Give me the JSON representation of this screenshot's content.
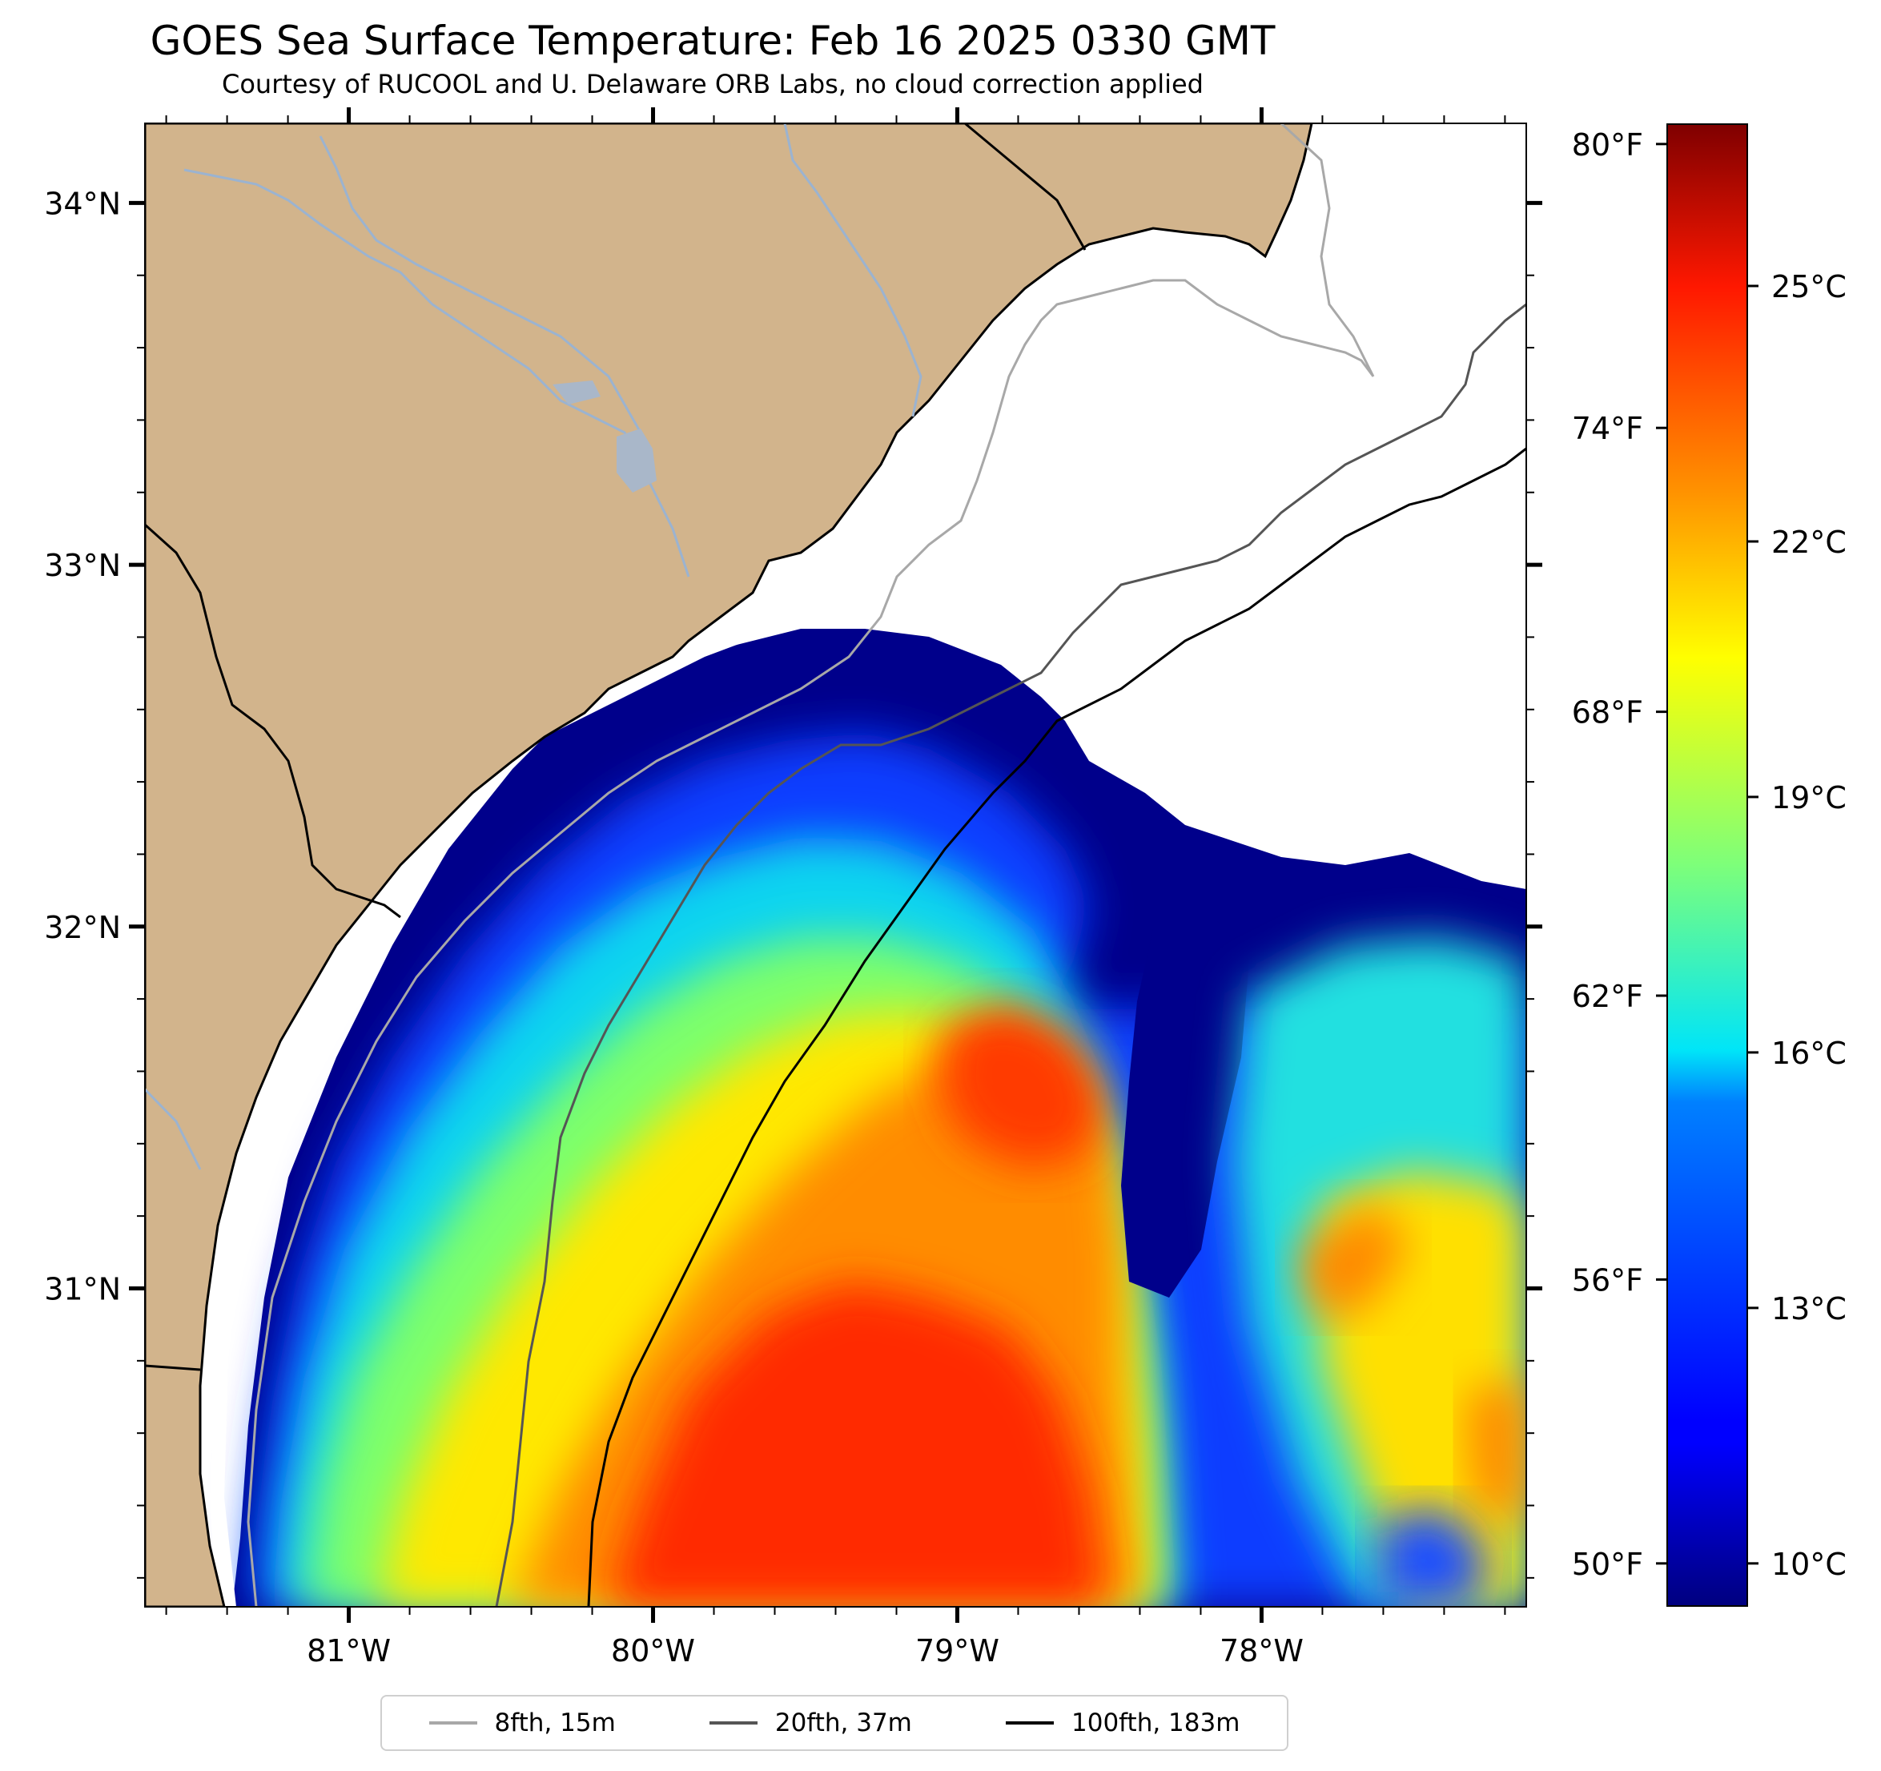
{
  "title": "GOES Sea Surface Temperature: Feb 16 2025 0330 GMT",
  "subtitle": "Courtesy of RUCOOL and U. Delaware ORB Labs, no cloud correction applied",
  "map": {
    "lon_ticks": [
      {
        "value": -81,
        "label": "81°W"
      },
      {
        "value": -80,
        "label": "80°W"
      },
      {
        "value": -79,
        "label": "79°W"
      },
      {
        "value": -78,
        "label": "78°W"
      }
    ],
    "lat_ticks": [
      {
        "value": 34,
        "label": "34°N"
      },
      {
        "value": 33,
        "label": "33°N"
      },
      {
        "value": 32,
        "label": "32°N"
      },
      {
        "value": 31,
        "label": "31°N"
      }
    ],
    "extent": {
      "lon_min": -81.67,
      "lon_max": -77.13,
      "lat_min": 30.12,
      "lat_max": 34.22
    },
    "colors": {
      "land": "#d2b48c",
      "ocean_cloud": "#ffffff",
      "cold": "#00008b",
      "hot": "#ff2a00"
    }
  },
  "colorbar": {
    "celsius_range": [
      9.5,
      26.9
    ],
    "fahrenheit_ticks": [
      "80°F",
      "74°F",
      "68°F",
      "62°F",
      "56°F",
      "50°F"
    ],
    "fahrenheit_values": [
      80,
      74,
      68,
      62,
      56,
      50
    ],
    "celsius_ticks": [
      "25°C",
      "22°C",
      "19°C",
      "16°C",
      "13°C",
      "10°C"
    ],
    "celsius_values": [
      25,
      22,
      19,
      16,
      13,
      10
    ]
  },
  "legend": {
    "items": [
      {
        "label": "8fth, 15m",
        "color": "#a8a8a8"
      },
      {
        "label": "20fth, 37m",
        "color": "#555555"
      },
      {
        "label": "100fth, 183m",
        "color": "#000000"
      }
    ]
  }
}
